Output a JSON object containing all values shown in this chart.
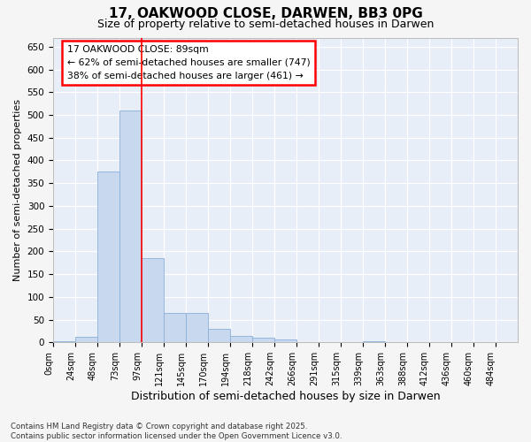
{
  "title": "17, OAKWOOD CLOSE, DARWEN, BB3 0PG",
  "subtitle": "Size of property relative to semi-detached houses in Darwen",
  "xlabel": "Distribution of semi-detached houses by size in Darwen",
  "ylabel": "Number of semi-detached properties",
  "bar_color": "#c8d8ee",
  "bar_edge_color": "#8ab0d8",
  "background_color": "#e8eef8",
  "grid_color": "#ffffff",
  "categories": [
    "0sqm",
    "24sqm",
    "48sqm",
    "73sqm",
    "97sqm",
    "121sqm",
    "145sqm",
    "170sqm",
    "194sqm",
    "218sqm",
    "242sqm",
    "266sqm",
    "291sqm",
    "315sqm",
    "339sqm",
    "363sqm",
    "388sqm",
    "412sqm",
    "436sqm",
    "460sqm",
    "484sqm"
  ],
  "values": [
    3,
    13,
    375,
    510,
    185,
    65,
    65,
    30,
    15,
    10,
    6,
    0,
    0,
    0,
    3,
    0,
    0,
    0,
    0,
    0,
    0
  ],
  "red_line_bin": 4,
  "annotation_line1": "17 OAKWOOD CLOSE: 89sqm",
  "annotation_line2": "← 62% of semi-detached houses are smaller (747)",
  "annotation_line3": "38% of semi-detached houses are larger (461) →",
  "ylim": [
    0,
    670
  ],
  "yticks": [
    0,
    50,
    100,
    150,
    200,
    250,
    300,
    350,
    400,
    450,
    500,
    550,
    600,
    650
  ],
  "footnote": "Contains HM Land Registry data © Crown copyright and database right 2025.\nContains public sector information licensed under the Open Government Licence v3.0.",
  "fig_width": 6.0,
  "fig_height": 5.0,
  "dpi": 100
}
